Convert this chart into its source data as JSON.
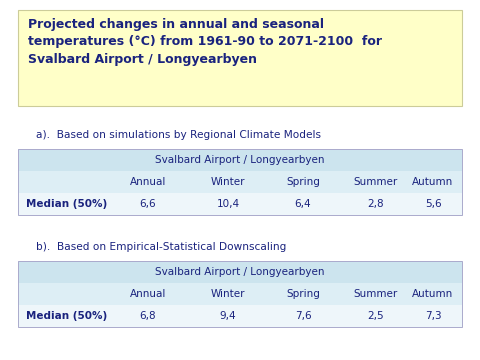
{
  "title_line1": "Projected changes in annual and seasonal",
  "title_line2": "temperatures (°C) from 1961-90 to 2071-2100  for",
  "title_line3": "Svalbard Airport / Longyearbyen",
  "title_bg": "#ffffc8",
  "title_color": "#1a237e",
  "section_a_label": "a).  Based on simulations by Regional Climate Models",
  "section_b_label": "b).  Based on Empirical-Statistical Downscaling",
  "table_header": "Svalbard Airport / Longyearbyen",
  "columns": [
    "",
    "Annual",
    "Winter",
    "Spring",
    "Summer",
    "Autumn"
  ],
  "table_a_row": [
    "Median (50%)",
    "6,6",
    "10,4",
    "6,4",
    "2,8",
    "5,6"
  ],
  "table_b_row": [
    "Median (50%)",
    "6,8",
    "9,4",
    "7,6",
    "2,5",
    "7,3"
  ],
  "row1_color": "#cce4ee",
  "row2_color": "#ddeef5",
  "row3_color": "#eef6fa",
  "text_color": "#1a237e",
  "bg_color": "#ffffff",
  "fig_w": 4.8,
  "fig_h": 3.6,
  "dpi": 100
}
